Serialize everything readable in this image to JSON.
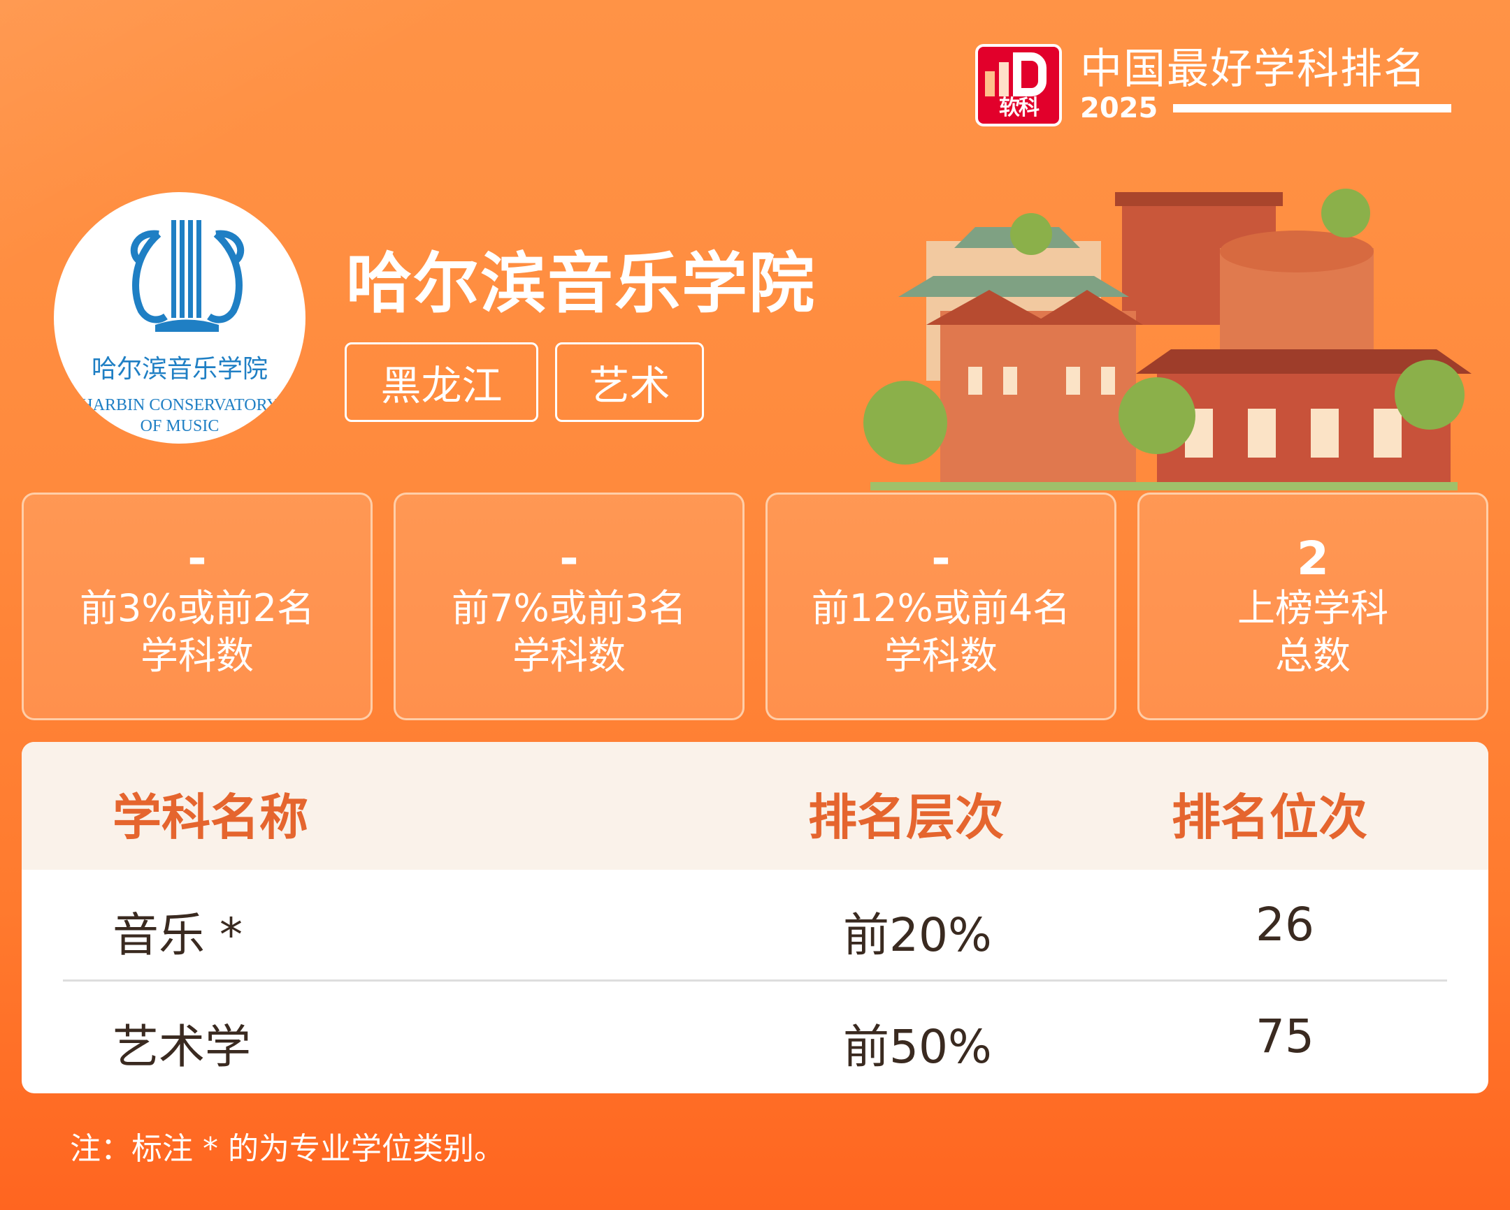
{
  "brand": {
    "logo_text": "软科",
    "title": "中国最好学科排名",
    "year": "2025",
    "accent": "#e2002b"
  },
  "school": {
    "name": "哈尔滨音乐学院",
    "logo_cn": "哈尔滨音乐学院",
    "logo_en_1": "HARBIN CONSERVATORY",
    "logo_en_2": "OF MUSIC",
    "tags": [
      "黑龙江",
      "艺术"
    ]
  },
  "stats": [
    {
      "value": "-",
      "label1": "前3%或前2名",
      "label2": "学科数"
    },
    {
      "value": "-",
      "label1": "前7%或前3名",
      "label2": "学科数"
    },
    {
      "value": "-",
      "label1": "前12%或前4名",
      "label2": "学科数"
    },
    {
      "value": "2",
      "label1": "上榜学科",
      "label2": "总数"
    }
  ],
  "table": {
    "headers": [
      "学科名称",
      "排名层次",
      "排名位次"
    ],
    "rows": [
      {
        "name": "音乐 *",
        "tier": "前20%",
        "rank": "26"
      },
      {
        "name": "艺术学",
        "tier": "前50%",
        "rank": "75"
      }
    ]
  },
  "note": "注：标注 * 的为专业学位类别。",
  "colors": {
    "header_text": "#e5652e",
    "background": "#ff8a3d",
    "logo_blue": "#1f7fc4"
  }
}
